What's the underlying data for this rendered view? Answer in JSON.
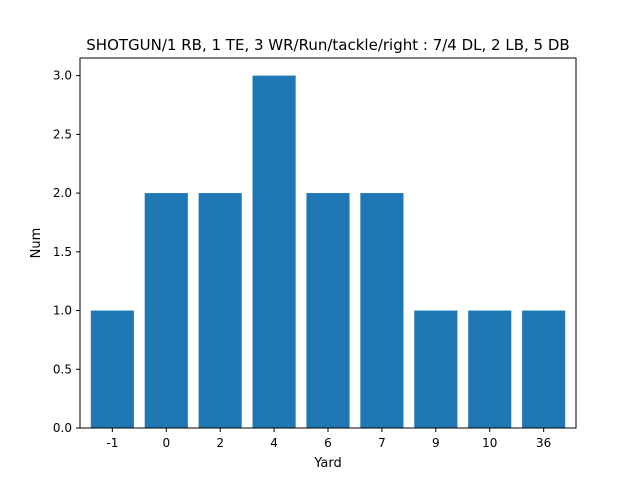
{
  "chart_data": {
    "type": "bar",
    "title": "SHOTGUN/1 RB, 1 TE, 3 WR/Run/tackle/right : 7/4 DL, 2 LB, 5 DB",
    "xlabel": "Yard",
    "ylabel": "Num",
    "categories": [
      "-1",
      "0",
      "2",
      "4",
      "6",
      "7",
      "9",
      "10",
      "36"
    ],
    "values": [
      1,
      2,
      2,
      3,
      2,
      2,
      1,
      1,
      1
    ],
    "ylim": [
      0,
      3.15
    ],
    "yticks": [
      "0.0",
      "0.5",
      "1.0",
      "1.5",
      "2.0",
      "2.5",
      "3.0"
    ],
    "bar_color": "#1f77b4",
    "grid": false,
    "legend": "none"
  }
}
